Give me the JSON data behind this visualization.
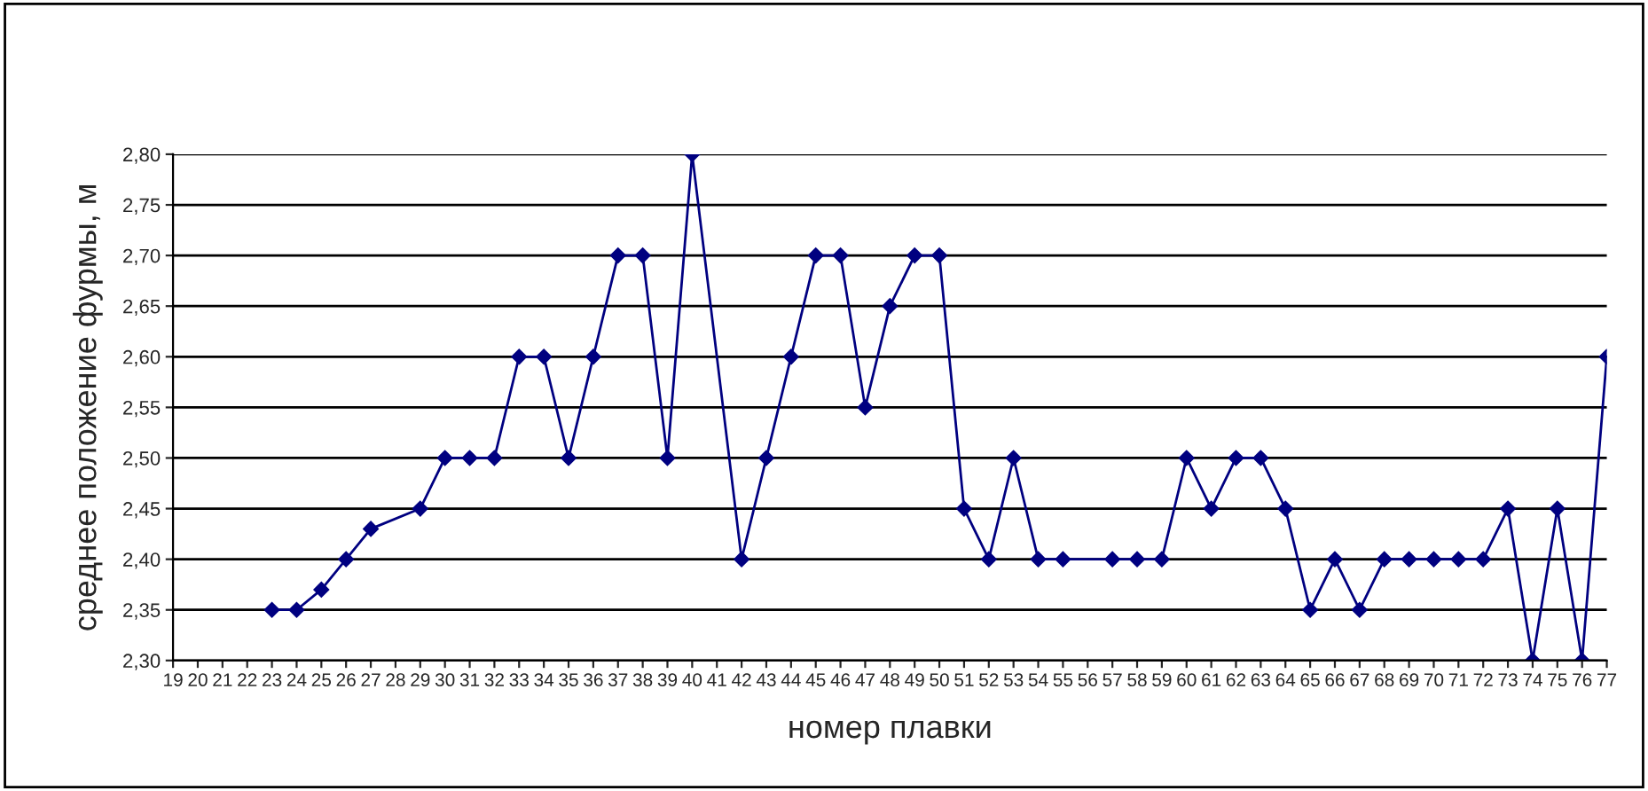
{
  "chart_data": {
    "type": "line",
    "xlabel": "номер плавки",
    "ylabel": "среднее положение фурмы, м",
    "categories": [
      "19",
      "20",
      "21",
      "22",
      "23",
      "24",
      "25",
      "26",
      "27",
      "28",
      "29",
      "30",
      "31",
      "32",
      "33",
      "34",
      "35",
      "36",
      "37",
      "38",
      "39",
      "40",
      "41",
      "42",
      "43",
      "44",
      "45",
      "46",
      "47",
      "48",
      "49",
      "50",
      "51",
      "52",
      "53",
      "54",
      "55",
      "56",
      "57",
      "58",
      "59",
      "60",
      "61",
      "62",
      "63",
      "64",
      "65",
      "66",
      "67",
      "68",
      "69",
      "70",
      "71",
      "72",
      "73",
      "74",
      "75",
      "76",
      "77"
    ],
    "series": [
      {
        "color": "#000080",
        "values": [
          null,
          null,
          null,
          null,
          2.35,
          2.35,
          2.37,
          2.4,
          2.43,
          null,
          2.45,
          2.5,
          2.5,
          2.5,
          2.6,
          2.6,
          2.5,
          2.6,
          2.7,
          2.7,
          2.5,
          2.8,
          null,
          2.4,
          2.5,
          2.6,
          2.7,
          2.7,
          2.55,
          2.65,
          2.7,
          2.7,
          2.45,
          2.4,
          2.5,
          2.4,
          2.4,
          null,
          2.4,
          2.4,
          2.4,
          2.5,
          2.45,
          2.5,
          2.5,
          2.45,
          2.35,
          2.4,
          2.35,
          2.4,
          2.4,
          2.4,
          2.4,
          2.4,
          2.45,
          2.3,
          2.45,
          2.3,
          2.6
        ]
      }
    ],
    "ylim": [
      2.3,
      2.8
    ],
    "yticks": [
      {
        "value": 2.3,
        "label": "2,30"
      },
      {
        "value": 2.35,
        "label": "2,35"
      },
      {
        "value": 2.4,
        "label": "2,40"
      },
      {
        "value": 2.45,
        "label": "2,45"
      },
      {
        "value": 2.5,
        "label": "2,50"
      },
      {
        "value": 2.55,
        "label": "2,55"
      },
      {
        "value": 2.6,
        "label": "2,60"
      },
      {
        "value": 2.65,
        "label": "2,65"
      },
      {
        "value": 2.7,
        "label": "2,70"
      },
      {
        "value": 2.75,
        "label": "2,75"
      },
      {
        "value": 2.8,
        "label": "2,80"
      }
    ],
    "grid": "y",
    "marker": "diamond",
    "line_style": "solid",
    "legend": false
  }
}
